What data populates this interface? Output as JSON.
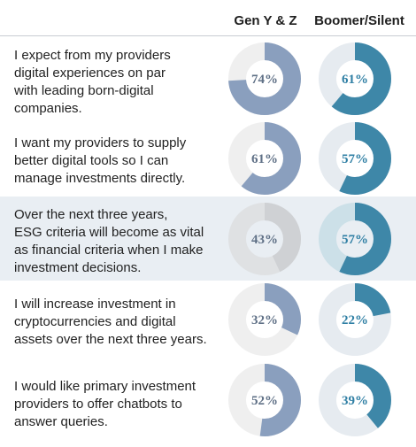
{
  "chart_data": {
    "type": "donut-table",
    "columns": [
      "Gen Y & Z",
      "Boomer/Silent"
    ],
    "colors": {
      "gen_yz_fill": "#8a9fbe",
      "gen_yz_track": "#efefef",
      "gen_yz_fill_highlight": "#cfd1d4",
      "gen_yz_track_highlight": "#dfe1e3",
      "boomer_fill": "#3e87a8",
      "boomer_track": "#e6ebf0",
      "boomer_track_highlight": "#cce0e8",
      "label_gen_yz": "#5f7086",
      "label_boomer": "#2f7fa4"
    },
    "rows": [
      {
        "statement": "I expect from my providers\ndigital experiences on par\nwith leading born-digital\ncompanies.",
        "gen_yz": 74,
        "gen_yz_label": "74%",
        "boomer": 61,
        "boomer_label": "61%",
        "highlight": false
      },
      {
        "statement": "I want my providers to supply\nbetter digital tools so I can\nmanage investments directly.",
        "gen_yz": 61,
        "gen_yz_label": "61%",
        "boomer": 57,
        "boomer_label": "57%",
        "highlight": false
      },
      {
        "statement": "Over the next three years,\nESG criteria will become as vital\nas financial criteria when I make\ninvestment decisions.",
        "gen_yz": 43,
        "gen_yz_label": "43%",
        "boomer": 57,
        "boomer_label": "57%",
        "highlight": true
      },
      {
        "statement": "I will increase investment in\ncryptocurrencies and digital\nassets over the next three years.",
        "gen_yz": 32,
        "gen_yz_label": "32%",
        "boomer": 22,
        "boomer_label": "22%",
        "highlight": false
      },
      {
        "statement": "I would like primary investment\nproviders to offer chatbots to\nanswer queries.",
        "gen_yz": 52,
        "gen_yz_label": "52%",
        "boomer": 39,
        "boomer_label": "39%",
        "highlight": false
      }
    ]
  }
}
